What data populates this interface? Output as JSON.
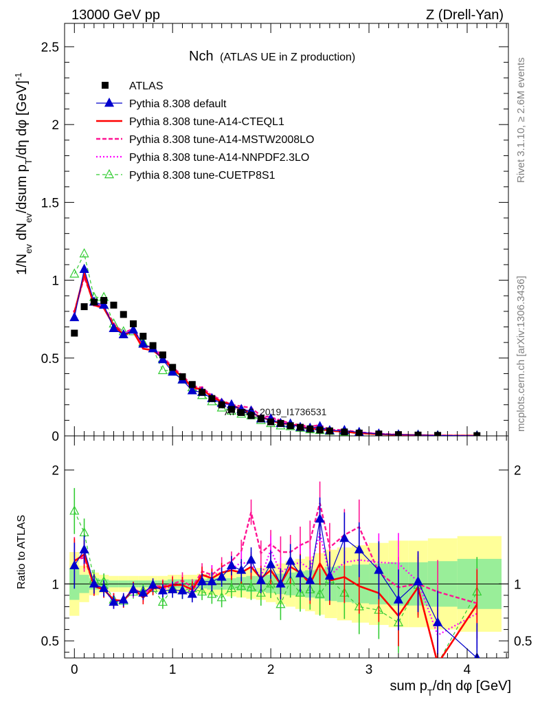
{
  "header": {
    "energy": "13000 GeV pp",
    "process": "Z (Drell-Yan)"
  },
  "watermarks": {
    "rivet": "Rivet 3.1.10, ≥ 2.6M events",
    "mcplots": "mcplots.cern.ch [arXiv:1306.3436]",
    "analysis": "ATLAS_2019_I1736531"
  },
  "chart_data": {
    "type": "line",
    "title": "Nch",
    "subtitle": "(ATLAS UE in Z production)",
    "xlabel": "sum p_T/dη dφ [GeV]",
    "ylabel": "1/N_ev dN_ev/dsum p_T/dη dφ [GeV]^-1",
    "ratio_ylabel": "Ratio to ATLAS",
    "xlim": [
      -0.1,
      4.42
    ],
    "ylim": [
      0,
      2.65
    ],
    "ratio_ylim": [
      0.35,
      2.3
    ],
    "xticks": [
      0,
      1,
      2,
      3,
      4
    ],
    "yticks": [
      0,
      0.5,
      1,
      1.5,
      2,
      2.5
    ],
    "ratio_yticks": [
      0.5,
      1,
      2
    ],
    "legend_position": "top-left",
    "x": [
      0.0,
      0.1,
      0.2,
      0.3,
      0.4,
      0.5,
      0.6,
      0.7,
      0.8,
      0.9,
      1.0,
      1.1,
      1.2,
      1.3,
      1.4,
      1.5,
      1.6,
      1.7,
      1.8,
      1.9,
      2.0,
      2.1,
      2.2,
      2.3,
      2.4,
      2.5,
      2.6,
      2.75,
      2.9,
      3.1,
      3.3,
      3.5,
      3.7,
      4.1
    ],
    "data": {
      "name": "ATLAS",
      "values": [
        0.66,
        0.83,
        0.86,
        0.87,
        0.84,
        0.78,
        0.72,
        0.64,
        0.58,
        0.52,
        0.44,
        0.38,
        0.33,
        0.28,
        0.24,
        0.2,
        0.17,
        0.15,
        0.13,
        0.11,
        0.09,
        0.08,
        0.065,
        0.055,
        0.045,
        0.038,
        0.032,
        0.025,
        0.018,
        0.012,
        0.008,
        0.005,
        0.003,
        0.0015
      ],
      "band_yellow": [
        0.28,
        0.16,
        0.1,
        0.08,
        0.07,
        0.07,
        0.07,
        0.07,
        0.07,
        0.07,
        0.08,
        0.08,
        0.08,
        0.09,
        0.1,
        0.1,
        0.11,
        0.12,
        0.13,
        0.14,
        0.16,
        0.18,
        0.2,
        0.22,
        0.24,
        0.27,
        0.3,
        0.32,
        0.34,
        0.36,
        0.38,
        0.38,
        0.4,
        0.42
      ],
      "band_green": [
        0.14,
        0.08,
        0.05,
        0.04,
        0.03,
        0.03,
        0.03,
        0.03,
        0.03,
        0.03,
        0.04,
        0.04,
        0.04,
        0.04,
        0.05,
        0.05,
        0.05,
        0.06,
        0.07,
        0.07,
        0.08,
        0.09,
        0.1,
        0.11,
        0.12,
        0.13,
        0.15,
        0.16,
        0.17,
        0.18,
        0.19,
        0.19,
        0.2,
        0.22
      ]
    },
    "series": [
      {
        "name": "Pythia 8.308 default",
        "color": "#0000cc",
        "style": "solid-triangle",
        "values": [
          0.76,
          1.07,
          0.86,
          0.84,
          0.69,
          0.65,
          0.68,
          0.59,
          0.56,
          0.49,
          0.41,
          0.36,
          0.29,
          0.28,
          0.24,
          0.21,
          0.2,
          0.17,
          0.16,
          0.11,
          0.11,
          0.08,
          0.077,
          0.055,
          0.05,
          0.06,
          0.034,
          0.035,
          0.023,
          0.013,
          0.007,
          0.005,
          0.002,
          0.0005
        ],
        "ratio": [
          1.16,
          1.3,
          1.0,
          0.96,
          0.84,
          0.86,
          0.95,
          0.92,
          0.99,
          0.94,
          0.95,
          0.94,
          0.91,
          1.02,
          1.02,
          1.06,
          1.16,
          1.12,
          1.21,
          1.03,
          1.17,
          1.0,
          1.2,
          1.09,
          1.03,
          1.57,
          1.07,
          1.4,
          1.3,
          1.12,
          0.86,
          1.02,
          0.66,
          0.35
        ]
      },
      {
        "name": "Pythia 8.308 tune-A14-CTEQL1",
        "color": "#ff0000",
        "style": "solid-thick",
        "values": [
          0.79,
          1.04,
          0.84,
          0.82,
          0.71,
          0.65,
          0.67,
          0.56,
          0.55,
          0.5,
          0.43,
          0.38,
          0.31,
          0.3,
          0.25,
          0.22,
          0.2,
          0.17,
          0.15,
          0.12,
          0.1,
          0.08,
          0.075,
          0.06,
          0.045,
          0.045,
          0.033,
          0.027,
          0.018,
          0.011,
          0.006,
          0.005,
          0.001,
          0.0012
        ],
        "ratio": [
          1.2,
          1.26,
          0.98,
          0.95,
          0.86,
          0.85,
          0.96,
          0.88,
          0.96,
          0.97,
          0.99,
          0.99,
          0.95,
          1.08,
          1.05,
          1.1,
          1.12,
          1.1,
          1.15,
          1.05,
          1.12,
          1.0,
          1.15,
          1.1,
          1.0,
          1.18,
          1.03,
          1.06,
          0.98,
          0.92,
          0.72,
          0.97,
          0.3,
          0.82
        ]
      },
      {
        "name": "Pythia 8.308 tune-A14-MSTW2008LO",
        "color": "#ff1493",
        "style": "dashed-thick",
        "values": [
          0.8,
          1.02,
          0.85,
          0.83,
          0.72,
          0.66,
          0.69,
          0.58,
          0.57,
          0.51,
          0.44,
          0.39,
          0.32,
          0.31,
          0.26,
          0.23,
          0.2,
          0.19,
          0.18,
          0.13,
          0.12,
          0.1,
          0.08,
          0.07,
          0.06,
          0.07,
          0.04,
          0.037,
          0.024,
          0.014,
          0.008,
          0.005,
          0.003,
          0.0012
        ],
        "ratio": [
          1.21,
          1.23,
          0.99,
          0.95,
          0.86,
          0.85,
          0.96,
          0.91,
          0.98,
          0.98,
          1.0,
          1.03,
          0.97,
          1.11,
          1.08,
          1.15,
          1.2,
          1.29,
          1.63,
          1.27,
          1.35,
          1.28,
          1.28,
          1.34,
          1.38,
          1.71,
          1.32,
          1.43,
          1.5,
          1.1,
          0.97,
          1.0,
          0.93,
          0.83
        ]
      },
      {
        "name": "Pythia 8.308 tune-A14-NNPDF2.3LO",
        "color": "#ff00ff",
        "style": "dotted-thick",
        "values": [
          0.78,
          1.04,
          0.84,
          0.83,
          0.7,
          0.66,
          0.68,
          0.57,
          0.57,
          0.5,
          0.43,
          0.38,
          0.3,
          0.3,
          0.26,
          0.22,
          0.19,
          0.18,
          0.15,
          0.12,
          0.12,
          0.09,
          0.075,
          0.065,
          0.05,
          0.055,
          0.034,
          0.03,
          0.022,
          0.014,
          0.008,
          0.005,
          0.0017,
          0.0011
        ],
        "ratio": [
          1.19,
          1.25,
          0.99,
          0.96,
          0.84,
          0.86,
          0.94,
          0.9,
          0.98,
          0.95,
          0.98,
          1.0,
          0.92,
          1.07,
          1.08,
          1.1,
          1.13,
          1.19,
          1.17,
          1.06,
          1.3,
          1.1,
          1.16,
          1.19,
          1.13,
          1.45,
          1.07,
          1.19,
          1.21,
          1.19,
          1.18,
          1.02,
          0.55,
          0.74
        ]
      },
      {
        "name": "Pythia 8.308 tune-CUETP8S1",
        "color": "#33cc33",
        "style": "dashed-open-triangle",
        "values": [
          1.04,
          1.17,
          0.89,
          0.89,
          0.72,
          0.67,
          0.67,
          0.6,
          0.56,
          0.42,
          0.42,
          0.36,
          0.31,
          0.26,
          0.22,
          0.18,
          0.16,
          0.14,
          0.13,
          0.1,
          0.08,
          0.065,
          0.06,
          0.05,
          0.04,
          0.035,
          0.03,
          0.023,
          0.014,
          0.009,
          0.005,
          0.005,
          0.002,
          0.0014
        ],
        "ratio": [
          1.64,
          1.45,
          1.04,
          1.02,
          0.86,
          0.85,
          0.93,
          0.94,
          0.96,
          0.84,
          0.96,
          0.94,
          0.96,
          0.93,
          0.91,
          0.88,
          0.96,
          0.98,
          0.97,
          0.92,
          1.0,
          0.82,
          1.03,
          0.92,
          0.95,
          0.91,
          1.04,
          0.92,
          0.8,
          0.77,
          0.66,
          0.99,
          0.3,
          0.93
        ]
      }
    ]
  }
}
